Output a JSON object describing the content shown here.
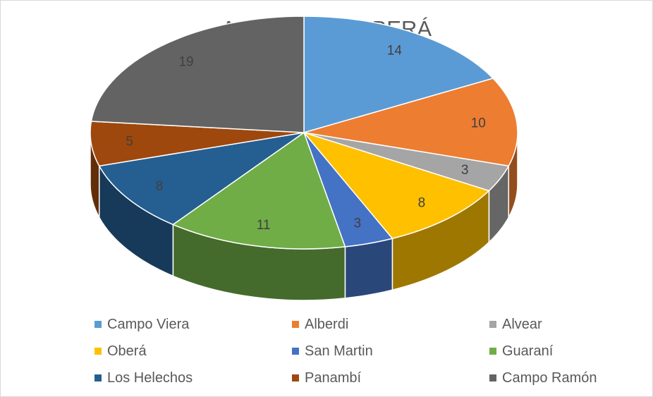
{
  "chart_data": {
    "type": "pie",
    "title": "Apiarios dpto OBERÁ",
    "categories": [
      "Campo Viera",
      "Alberdi",
      "Alvear",
      "Oberá",
      "San Martin",
      "Guaraní",
      "Los Helechos",
      "Panambí",
      "Campo Ramón"
    ],
    "values": [
      14,
      10,
      3,
      8,
      3,
      11,
      8,
      5,
      19
    ],
    "colors": [
      "#5b9bd5",
      "#ed7d31",
      "#a5a5a5",
      "#ffc000",
      "#4472c4",
      "#70ad47",
      "#255e91",
      "#9e480e",
      "#636363"
    ],
    "three_d": true,
    "data_labels": true,
    "legend_position": "bottom"
  }
}
